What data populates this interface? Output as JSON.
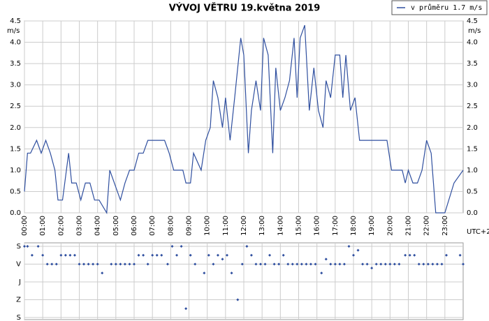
{
  "chart_data": [
    {
      "type": "line",
      "title": "VÝVOJ VĚTRU  19.května 2019",
      "y_label": "m/s",
      "x_note": "UTC+2",
      "grid": true,
      "xlim": [
        0,
        1440
      ],
      "xticks": [
        {
          "value": 0,
          "label": "00:00"
        },
        {
          "value": 60,
          "label": "01:00"
        },
        {
          "value": 120,
          "label": "02:00"
        },
        {
          "value": 180,
          "label": "03:00"
        },
        {
          "value": 240,
          "label": "04:00"
        },
        {
          "value": 300,
          "label": "05:00"
        },
        {
          "value": 360,
          "label": "06:00"
        },
        {
          "value": 420,
          "label": "07:00"
        },
        {
          "value": 480,
          "label": "08:00"
        },
        {
          "value": 540,
          "label": "09:00"
        },
        {
          "value": 600,
          "label": "10:00"
        },
        {
          "value": 660,
          "label": "11:00"
        },
        {
          "value": 720,
          "label": "12:00"
        },
        {
          "value": 780,
          "label": "13:00"
        },
        {
          "value": 840,
          "label": "14:00"
        },
        {
          "value": 900,
          "label": "15:00"
        },
        {
          "value": 960,
          "label": "16:00"
        },
        {
          "value": 1020,
          "label": "17:00"
        },
        {
          "value": 1080,
          "label": "18:00"
        },
        {
          "value": 1140,
          "label": "19:00"
        },
        {
          "value": 1200,
          "label": "20:00"
        },
        {
          "value": 1260,
          "label": "21:00"
        },
        {
          "value": 1320,
          "label": "22:00"
        },
        {
          "value": 1380,
          "label": "23:00"
        }
      ],
      "ylim": [
        0,
        4.5
      ],
      "yticks": [
        {
          "value": 0,
          "label": "0.0"
        },
        {
          "value": 0.5,
          "label": "0.5"
        },
        {
          "value": 1,
          "label": "1.0"
        },
        {
          "value": 1.5,
          "label": "1.5"
        },
        {
          "value": 2,
          "label": "2.0"
        },
        {
          "value": 2.5,
          "label": "2.5"
        },
        {
          "value": 3,
          "label": "3.0"
        },
        {
          "value": 3.5,
          "label": "3.5"
        },
        {
          "value": 4,
          "label": "4.0"
        },
        {
          "value": 4.5,
          "label": "4.5"
        }
      ],
      "x": [
        0,
        10,
        20,
        40,
        55,
        70,
        85,
        100,
        110,
        125,
        145,
        155,
        170,
        185,
        200,
        215,
        230,
        245,
        270,
        280,
        295,
        315,
        330,
        345,
        360,
        375,
        390,
        405,
        460,
        475,
        490,
        520,
        530,
        545,
        555,
        580,
        595,
        610,
        620,
        635,
        650,
        660,
        675,
        690,
        710,
        720,
        735,
        745,
        760,
        775,
        785,
        800,
        815,
        825,
        840,
        855,
        870,
        885,
        895,
        905,
        920,
        935,
        950,
        965,
        980,
        990,
        1005,
        1020,
        1035,
        1045,
        1055,
        1070,
        1085,
        1100,
        1190,
        1205,
        1240,
        1250,
        1260,
        1275,
        1290,
        1305,
        1320,
        1335,
        1350,
        1380,
        1410,
        1440
      ],
      "series": [
        {
          "name": "v průměru 1.7 m/s",
          "color": "#2f4f9f",
          "values": [
            0.5,
            1.4,
            1.4,
            1.7,
            1.4,
            1.7,
            1.4,
            1.0,
            0.3,
            0.3,
            1.4,
            0.7,
            0.7,
            0.3,
            0.7,
            0.7,
            0.3,
            0.3,
            0,
            1.0,
            0.7,
            0.3,
            0.7,
            1.0,
            1.0,
            1.4,
            1.4,
            1.7,
            1.7,
            1.4,
            1.0,
            1.0,
            0.7,
            0.7,
            1.4,
            1.0,
            1.7,
            2.0,
            3.1,
            2.7,
            2.0,
            2.7,
            1.7,
            2.7,
            4.1,
            3.7,
            1.4,
            2.4,
            3.1,
            2.4,
            4.1,
            3.7,
            1.4,
            3.4,
            2.4,
            2.7,
            3.1,
            4.1,
            2.7,
            4.1,
            4.4,
            2.4,
            3.4,
            2.4,
            2.0,
            3.1,
            2.7,
            3.7,
            3.7,
            2.7,
            3.7,
            2.4,
            2.7,
            1.7,
            1.7,
            1.0,
            1.0,
            0.7,
            1.0,
            0.7,
            0.7,
            1.0,
            1.7,
            1.4,
            0,
            0,
            0.7,
            1.0
          ]
        }
      ]
    },
    {
      "type": "scatter",
      "color": "#2f4f9f",
      "grid": true,
      "xlim": [
        0,
        1440
      ],
      "xticks": [
        0,
        60,
        120,
        180,
        240,
        300,
        360,
        420,
        480,
        540,
        600,
        660,
        720,
        780,
        840,
        900,
        960,
        1020,
        1080,
        1140,
        1200,
        1260,
        1320,
        1380
      ],
      "ylim": [
        0,
        360
      ],
      "yticks": [
        {
          "value": 0,
          "label": "S"
        },
        {
          "value": 90,
          "label": "V"
        },
        {
          "value": 180,
          "label": "J"
        },
        {
          "value": 270,
          "label": "Z"
        },
        {
          "value": 360,
          "label": "S"
        }
      ],
      "x": [
        0,
        10,
        25,
        45,
        60,
        75,
        90,
        105,
        120,
        135,
        150,
        165,
        180,
        195,
        210,
        225,
        240,
        255,
        285,
        300,
        315,
        330,
        345,
        360,
        375,
        390,
        405,
        420,
        435,
        450,
        470,
        485,
        500,
        515,
        530,
        545,
        560,
        590,
        605,
        620,
        635,
        650,
        665,
        680,
        700,
        715,
        730,
        745,
        760,
        775,
        790,
        805,
        820,
        835,
        850,
        865,
        880,
        895,
        910,
        925,
        940,
        955,
        975,
        990,
        1005,
        1020,
        1035,
        1050,
        1065,
        1080,
        1095,
        1110,
        1125,
        1140,
        1155,
        1170,
        1185,
        1200,
        1215,
        1230,
        1250,
        1265,
        1280,
        1295,
        1310,
        1325,
        1340,
        1355,
        1370,
        1385,
        1430,
        1440
      ],
      "values": [
        0,
        0,
        45,
        0,
        45,
        90,
        90,
        90,
        45,
        45,
        45,
        45,
        90,
        90,
        90,
        90,
        90,
        135,
        90,
        90,
        90,
        90,
        90,
        90,
        45,
        45,
        90,
        45,
        45,
        45,
        90,
        0,
        45,
        0,
        315,
        45,
        90,
        135,
        45,
        90,
        45,
        65,
        45,
        135,
        270,
        90,
        0,
        45,
        90,
        90,
        90,
        45,
        90,
        90,
        45,
        90,
        90,
        90,
        90,
        90,
        90,
        90,
        135,
        65,
        90,
        90,
        90,
        90,
        0,
        45,
        20,
        90,
        90,
        110,
        90,
        90,
        90,
        90,
        90,
        90,
        45,
        45,
        45,
        90,
        90,
        90,
        90,
        90,
        90,
        45,
        45,
        90
      ]
    }
  ]
}
